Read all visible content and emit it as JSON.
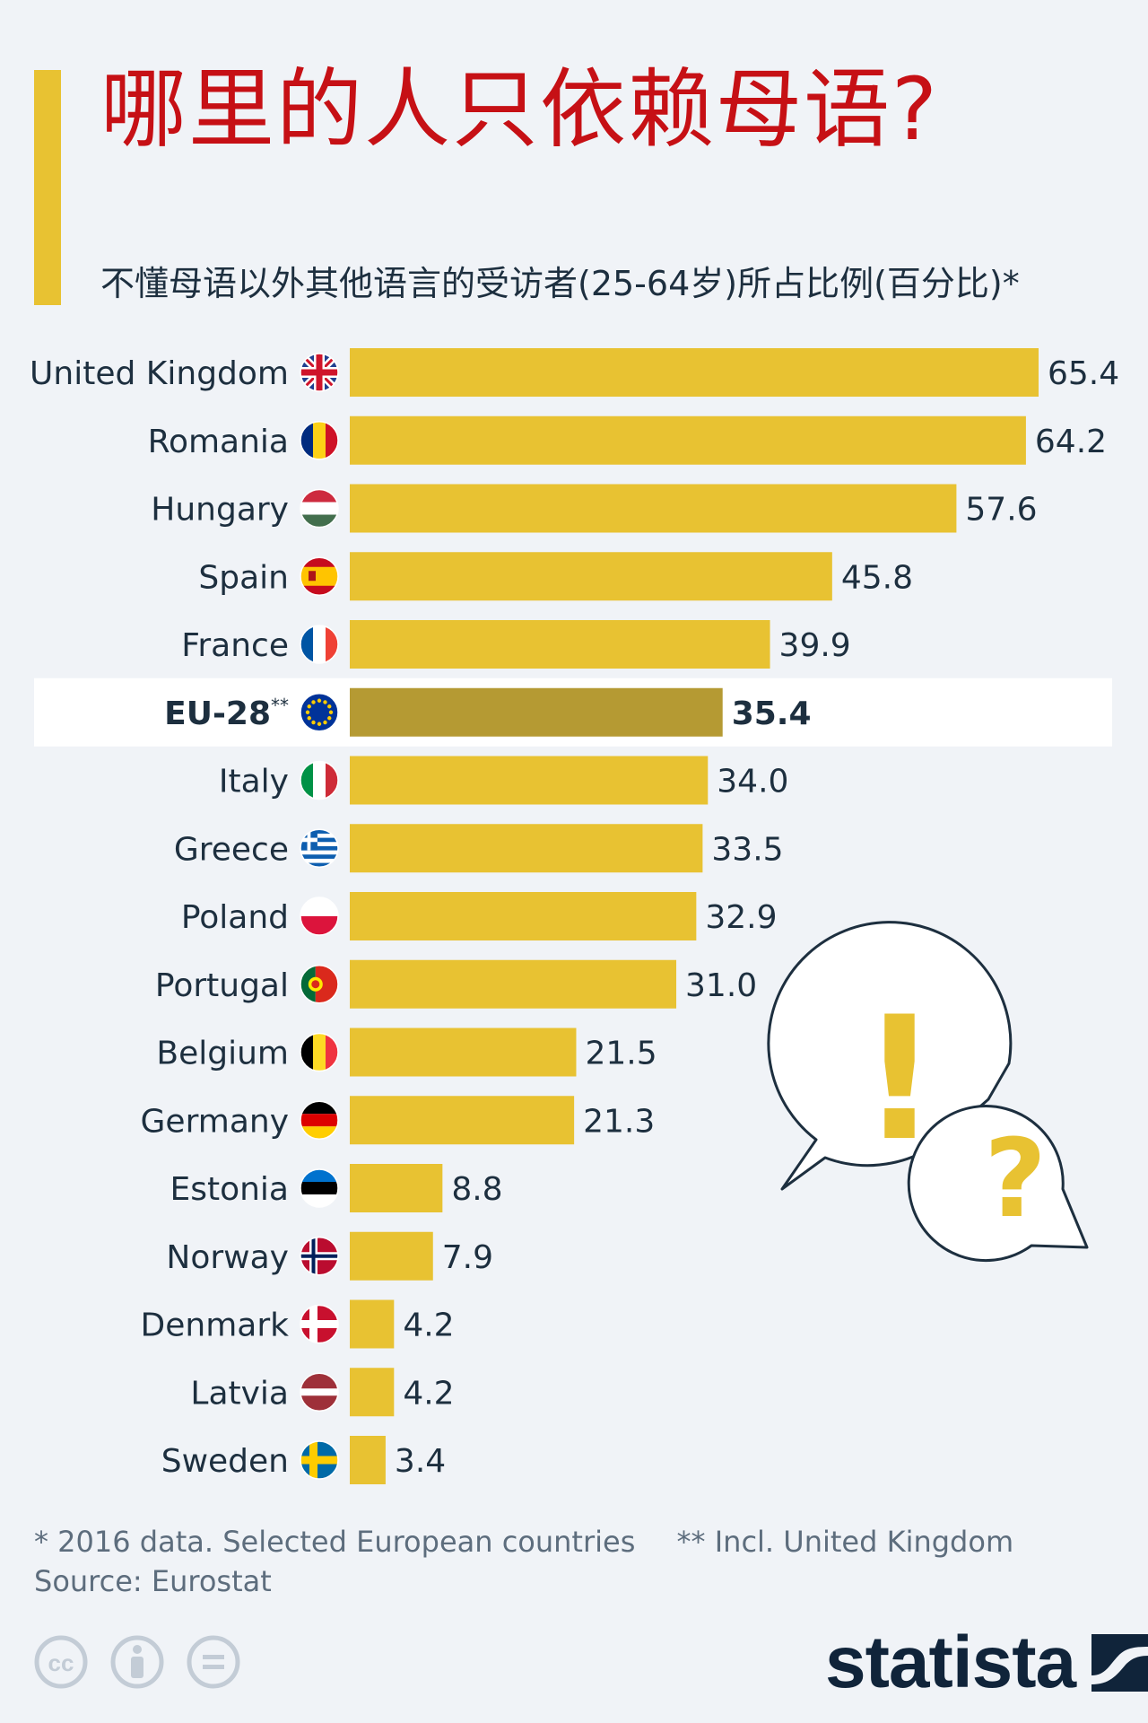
{
  "header": {
    "title": "哪里的人只依赖母语?",
    "subtitle": "不懂母语以外其他语言的受访者(25-64岁)所占比例(百分比)*"
  },
  "colors": {
    "bar": "#e8c232",
    "highlight_bar": "#b59a33",
    "title": "#c61015",
    "text": "#1d2f3f",
    "background": "#f0f3f7"
  },
  "chart_data": {
    "type": "bar",
    "orientation": "horizontal",
    "categories": [
      "United Kingdom",
      "Romania",
      "Hungary",
      "Spain",
      "France",
      "EU-28**",
      "Italy",
      "Greece",
      "Poland",
      "Portugal",
      "Belgium",
      "Germany",
      "Estonia",
      "Norway",
      "Denmark",
      "Latvia",
      "Sweden"
    ],
    "values": [
      65.4,
      64.2,
      57.6,
      45.8,
      39.9,
      35.4,
      34.0,
      33.5,
      32.9,
      31.0,
      21.5,
      21.3,
      8.8,
      7.9,
      4.2,
      4.2,
      3.4
    ],
    "value_labels": [
      "65.4",
      "64.2",
      "57.6",
      "45.8",
      "39.9",
      "35.4",
      "34.0",
      "33.5",
      "32.9",
      "31.0",
      "21.5",
      "21.3",
      "8.8",
      "7.9",
      "4.2",
      "4.2",
      "3.4"
    ],
    "highlight": "EU-28**",
    "flags": [
      "flag-uk-icon",
      "flag-romania-icon",
      "flag-hungary-icon",
      "flag-spain-icon",
      "flag-france-icon",
      "flag-eu-icon",
      "flag-italy-icon",
      "flag-greece-icon",
      "flag-poland-icon",
      "flag-portugal-icon",
      "flag-belgium-icon",
      "flag-germany-icon",
      "flag-estonia-icon",
      "flag-norway-icon",
      "flag-denmark-icon",
      "flag-latvia-icon",
      "flag-sweden-icon"
    ],
    "xlim": [
      0,
      65.4
    ],
    "grid": false,
    "legend": "none"
  },
  "footnotes": {
    "note1": "* 2016 data. Selected European countries",
    "note2": "** Incl. United Kingdom",
    "source": "Source: Eurostat"
  },
  "decor": {
    "speech_bubble_exclaim": "!",
    "speech_bubble_question": "?"
  },
  "license_icons": [
    "cc-icon",
    "attribution-icon",
    "no-derivatives-icon"
  ],
  "brand": {
    "name": "statista"
  }
}
